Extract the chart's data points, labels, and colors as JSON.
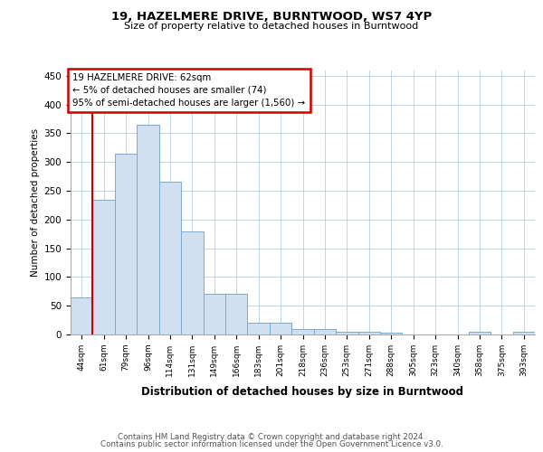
{
  "title1": "19, HAZELMERE DRIVE, BURNTWOOD, WS7 4YP",
  "title2": "Size of property relative to detached houses in Burntwood",
  "xlabel": "Distribution of detached houses by size in Burntwood",
  "ylabel": "Number of detached properties",
  "categories": [
    "44sqm",
    "61sqm",
    "79sqm",
    "96sqm",
    "114sqm",
    "131sqm",
    "149sqm",
    "166sqm",
    "183sqm",
    "201sqm",
    "218sqm",
    "236sqm",
    "253sqm",
    "271sqm",
    "288sqm",
    "305sqm",
    "323sqm",
    "340sqm",
    "358sqm",
    "375sqm",
    "393sqm"
  ],
  "values": [
    65,
    235,
    315,
    365,
    265,
    180,
    70,
    70,
    20,
    20,
    10,
    10,
    5,
    5,
    3,
    0,
    0,
    0,
    5,
    0,
    5
  ],
  "bar_facecolor": "#d0e0f0",
  "bar_edgecolor": "#7aaacf",
  "vline_x_idx": 1,
  "vline_color": "#cc0000",
  "annotation_text": "19 HAZELMERE DRIVE: 62sqm\n← 5% of detached houses are smaller (74)\n95% of semi-detached houses are larger (1,560) →",
  "annotation_box_facecolor": "#ffffff",
  "annotation_box_edgecolor": "#cc0000",
  "ylim": [
    0,
    460
  ],
  "yticks": [
    0,
    50,
    100,
    150,
    200,
    250,
    300,
    350,
    400,
    450
  ],
  "footer_line1": "Contains HM Land Registry data © Crown copyright and database right 2024.",
  "footer_line2": "Contains public sector information licensed under the Open Government Licence v3.0.",
  "background_color": "#ffffff",
  "grid_color": "#c0d4e8"
}
